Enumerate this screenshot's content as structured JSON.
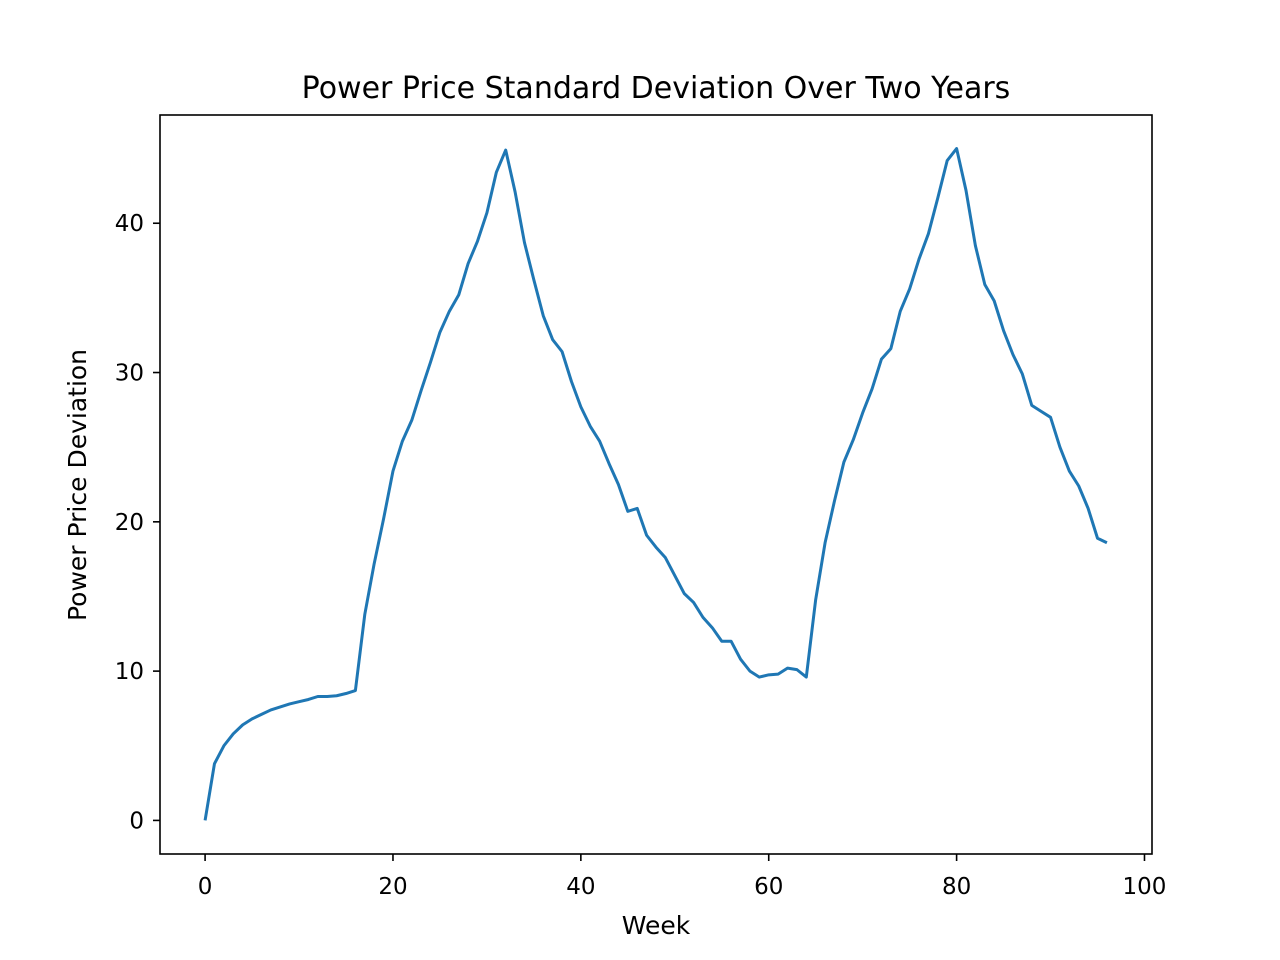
{
  "chart_data": {
    "type": "line",
    "title": "Power Price Standard Deviation Over Two Years",
    "xlabel": "Week",
    "ylabel": "Power Price Deviation",
    "xlim": [
      -4.8,
      100.8
    ],
    "ylim": [
      -2.25,
      47.25
    ],
    "xticks": [
      0,
      20,
      40,
      60,
      80,
      100
    ],
    "yticks": [
      0,
      10,
      20,
      30,
      40
    ],
    "grid": false,
    "series": [
      {
        "color": "#1f77b4",
        "x": [
          0,
          1,
          2,
          3,
          4,
          5,
          6,
          7,
          8,
          9,
          10,
          11,
          12,
          13,
          14,
          15,
          16,
          17,
          18,
          19,
          20,
          21,
          22,
          23,
          24,
          25,
          26,
          27,
          28,
          29,
          30,
          31,
          32,
          33,
          34,
          35,
          36,
          37,
          38,
          39,
          40,
          41,
          42,
          43,
          44,
          45,
          46,
          47,
          48,
          49,
          50,
          51,
          52,
          53,
          54,
          55,
          56,
          57,
          58,
          59,
          60,
          61,
          62,
          63,
          64,
          65,
          66,
          67,
          68,
          69,
          70,
          71,
          72,
          73,
          74,
          75,
          76,
          77,
          78,
          79,
          80,
          81,
          82,
          83,
          84,
          85,
          86,
          87,
          88,
          89,
          90,
          91,
          92,
          93,
          94,
          95,
          96
        ],
        "y": [
          0.0,
          3.8,
          5.0,
          5.8,
          6.4,
          6.8,
          7.1,
          7.4,
          7.6,
          7.8,
          7.95,
          8.1,
          8.3,
          8.3,
          8.35,
          8.5,
          8.7,
          13.8,
          17.2,
          20.2,
          23.4,
          25.4,
          26.8,
          28.8,
          30.7,
          32.7,
          34.1,
          35.2,
          37.3,
          38.8,
          40.7,
          43.4,
          44.9,
          42.1,
          38.7,
          36.2,
          33.8,
          32.2,
          31.4,
          29.4,
          27.7,
          26.4,
          25.4,
          23.9,
          22.5,
          20.7,
          20.9,
          19.1,
          18.3,
          17.6,
          16.4,
          15.2,
          14.6,
          13.6,
          12.9,
          12.0,
          12.0,
          10.8,
          10.0,
          9.6,
          9.75,
          9.8,
          10.2,
          10.1,
          9.6,
          14.8,
          18.6,
          21.4,
          24.0,
          25.5,
          27.3,
          28.9,
          30.9,
          31.6,
          34.1,
          35.6,
          37.6,
          39.3,
          41.7,
          44.2,
          45.0,
          42.2,
          38.5,
          35.9,
          34.8,
          32.8,
          31.2,
          29.9,
          27.8,
          27.4,
          27.0,
          25.0,
          23.4,
          22.4,
          20.9,
          18.9,
          18.6
        ]
      }
    ]
  }
}
